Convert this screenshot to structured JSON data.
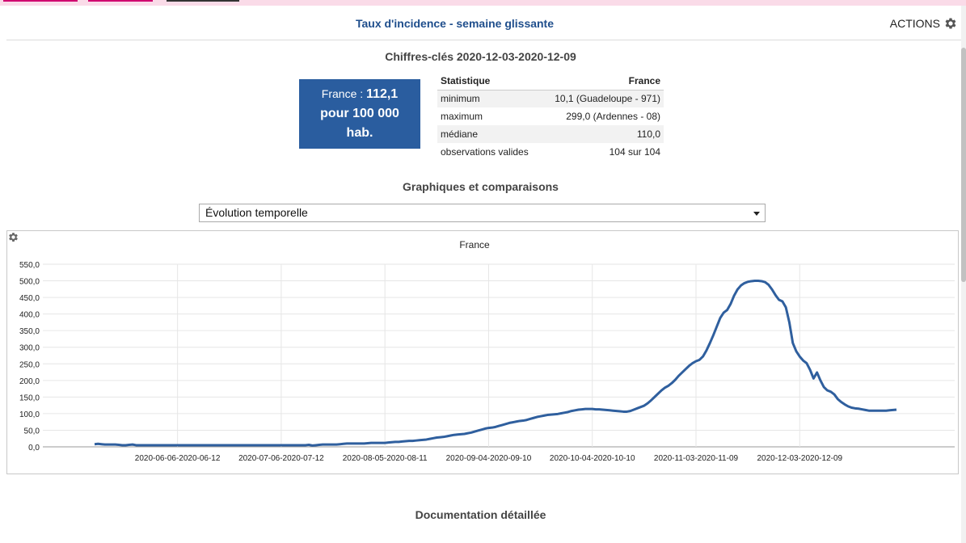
{
  "header": {
    "title": "Taux d'incidence - semaine glissante",
    "actions_label": "ACTIONS"
  },
  "keyfigures": {
    "title": "Chiffres-clés 2020-12-03-2020-12-09",
    "kpi": {
      "prefix": "France : ",
      "value": "112,1",
      "unit_line1": "pour 100 000",
      "unit_line2": "hab."
    },
    "table": {
      "headers": [
        "Statistique",
        "France"
      ],
      "rows": [
        [
          "minimum",
          "10,1 (Guadeloupe - 971)"
        ],
        [
          "maximum",
          "299,0 (Ardennes - 08)"
        ],
        [
          "médiane",
          "110,0"
        ],
        [
          "observations valides",
          "104 sur 104"
        ]
      ]
    }
  },
  "graphs": {
    "title": "Graphiques et comparaisons",
    "selected_option": "Évolution temporelle"
  },
  "footer": {
    "doc_title": "Documentation détaillée"
  },
  "colors": {
    "accent": "#2a5d9f",
    "title": "#1f4e8c",
    "line": "#2f5f9e",
    "top_strip": "#fadbe8"
  },
  "chart_data": {
    "type": "line",
    "title": "France",
    "ylim": [
      0,
      550
    ],
    "yticks": [
      "0,0",
      "50,0",
      "100,0",
      "150,0",
      "200,0",
      "250,0",
      "300,0",
      "350,0",
      "400,0",
      "450,0",
      "500,0",
      "550,0"
    ],
    "xtick_labels": [
      "2020-06-06-2020-06-12",
      "2020-07-06-2020-07-12",
      "2020-08-05-2020-08-11",
      "2020-09-04-2020-09-10",
      "2020-10-04-2020-10-10",
      "2020-11-03-2020-11-09",
      "2020-12-03-2020-12-09"
    ],
    "grid": true,
    "x_start": "2020-05-13",
    "series": [
      {
        "values": [
          8,
          9,
          8,
          7,
          7,
          7,
          7,
          6,
          5,
          5,
          6,
          7,
          5,
          5,
          5,
          5,
          5,
          5,
          5,
          5,
          5,
          5,
          5,
          5,
          5,
          5,
          5,
          5,
          5,
          5,
          5,
          5,
          5,
          5,
          5,
          5,
          5,
          5,
          5,
          5,
          5,
          5,
          5,
          5,
          5,
          5,
          5,
          5,
          5,
          5,
          5,
          5,
          5,
          5,
          5,
          5,
          5,
          5,
          5,
          5,
          5,
          5,
          6,
          4,
          5,
          6,
          7,
          7,
          7,
          7,
          7,
          8,
          9,
          10,
          10,
          10,
          10,
          10,
          10,
          11,
          12,
          12,
          12,
          12,
          12,
          13,
          14,
          15,
          15,
          16,
          17,
          18,
          18,
          19,
          20,
          21,
          22,
          24,
          26,
          28,
          29,
          30,
          32,
          34,
          36,
          37,
          38,
          39,
          41,
          43,
          46,
          49,
          52,
          55,
          57,
          58,
          60,
          63,
          66,
          69,
          72,
          74,
          76,
          78,
          79,
          81,
          84,
          87,
          90,
          92,
          94,
          96,
          97,
          98,
          99,
          101,
          103,
          105,
          108,
          110,
          112,
          113,
          114,
          114,
          114,
          113,
          113,
          112,
          111,
          110,
          109,
          108,
          107,
          106,
          106,
          108,
          112,
          116,
          120,
          124,
          131,
          140,
          150,
          160,
          170,
          178,
          184,
          192,
          202,
          214,
          224,
          234,
          244,
          252,
          258,
          262,
          272,
          290,
          312,
          336,
          362,
          388,
          404,
          412,
          430,
          455,
          474,
          486,
          493,
          497,
          499,
          500,
          500,
          499,
          496,
          488,
          474,
          457,
          443,
          438,
          420,
          375,
          313,
          288,
          272,
          260,
          252,
          232,
          206,
          224,
          200,
          180,
          170,
          166,
          158,
          144,
          135,
          128,
          122,
          118,
          116,
          115,
          113,
          111,
          109,
          109,
          109,
          109,
          109,
          109,
          110,
          111,
          112
        ]
      }
    ]
  }
}
